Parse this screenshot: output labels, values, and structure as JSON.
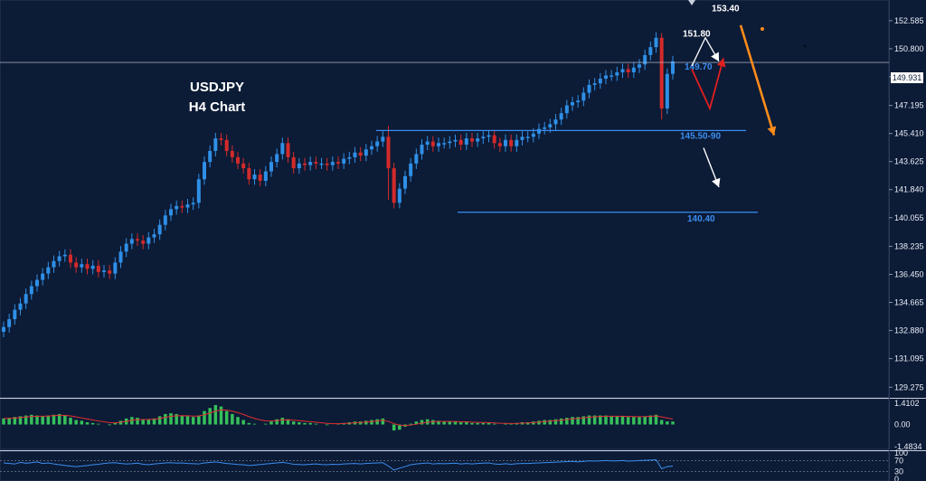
{
  "chart_data": {
    "type": "candlestick",
    "title": "USDJPY",
    "subtitle": "H4 Chart",
    "y_axis": {
      "ticks": [
        "152.585",
        "150.800",
        "149.015",
        "147.195",
        "145.410",
        "143.625",
        "141.840",
        "140.055",
        "138.235",
        "136.450",
        "134.665",
        "132.880",
        "131.095",
        "129.275"
      ],
      "ylim": [
        128.6,
        153.9
      ]
    },
    "current_price": "149.931",
    "price_series": {
      "name": "USDJPY",
      "close": [
        133.1,
        133.6,
        134.2,
        134.6,
        135.2,
        135.7,
        136.1,
        136.5,
        136.9,
        137.3,
        137.6,
        137.7,
        137.2,
        136.9,
        137.1,
        136.8,
        137.0,
        136.6,
        136.7,
        136.5,
        137.2,
        137.9,
        138.4,
        138.7,
        138.6,
        138.4,
        138.8,
        139.0,
        139.6,
        140.2,
        140.6,
        140.8,
        140.7,
        140.9,
        141.0,
        142.5,
        143.6,
        144.3,
        145.1,
        145.0,
        144.3,
        143.9,
        143.5,
        143.2,
        142.5,
        142.8,
        142.4,
        143.0,
        143.6,
        144.1,
        144.8,
        143.9,
        143.2,
        143.5,
        143.4,
        143.6,
        143.5,
        143.5,
        143.4,
        143.6,
        143.5,
        143.8,
        143.9,
        144.2,
        144.0,
        144.4,
        144.6,
        144.9,
        145.2,
        143.2,
        141.0,
        141.9,
        142.7,
        143.5,
        144.1,
        144.7,
        144.9,
        144.6,
        144.8,
        144.8,
        144.9,
        145.0,
        144.7,
        145.1,
        144.9,
        145.1,
        145.2,
        145.3,
        144.8,
        144.6,
        145.0,
        144.6,
        145.0,
        145.2,
        145.2,
        145.4,
        145.7,
        145.8,
        146.0,
        146.3,
        146.7,
        147.2,
        147.4,
        147.5,
        148.0,
        148.5,
        148.6,
        148.9,
        149.1,
        149.1,
        149.3,
        149.5,
        149.3,
        149.6,
        149.8,
        150.4,
        150.9,
        151.5,
        147.0,
        149.2,
        150.0
      ],
      "bearish_wicks": [
        {
          "index": 69,
          "high": 145.9,
          "low": 141.2
        },
        {
          "index": 118,
          "high": 151.8,
          "low": 146.3
        }
      ]
    },
    "levels": [
      {
        "label": "145.50-90",
        "value": 145.6,
        "color": "#3a8ef0"
      },
      {
        "label": "140.40",
        "value": 140.4,
        "color": "#3a8ef0"
      },
      {
        "label": "",
        "value": 149.93,
        "color": "#b9c3d6"
      }
    ],
    "annotations": [
      {
        "label": "153.40",
        "value": 153.4,
        "color": "#ffffff"
      },
      {
        "label": "151.80",
        "value": 151.8,
        "color": "#ffffff"
      },
      {
        "label": "149.70",
        "value": 149.7,
        "color": "#3a8ef0"
      }
    ],
    "arrows": [
      {
        "color": "#ffffff",
        "points": [
          [
            149.7,
            0
          ],
          [
            151.5,
            1
          ],
          [
            150.0,
            2
          ]
        ]
      },
      {
        "color": "#e02020",
        "points": [
          [
            149.5,
            0
          ],
          [
            147.0,
            1
          ],
          [
            150.2,
            2
          ]
        ]
      },
      {
        "color": "#ffffff",
        "points": [
          [
            144.5,
            0
          ],
          [
            142.0,
            1
          ]
        ]
      },
      {
        "color": "#ff8c1a",
        "points": [
          [
            152.3,
            0
          ],
          [
            145.3,
            1
          ]
        ]
      }
    ],
    "macd": {
      "ticks": [
        "1.4102",
        "0.00",
        "-1.4834"
      ],
      "ylim": [
        -1.6,
        1.6
      ],
      "histogram": [
        0.4,
        0.45,
        0.5,
        0.55,
        0.6,
        0.65,
        0.6,
        0.55,
        0.6,
        0.65,
        0.7,
        0.6,
        0.45,
        0.3,
        0.25,
        0.15,
        0.1,
        0.05,
        0.0,
        -0.05,
        0.1,
        0.25,
        0.4,
        0.5,
        0.45,
        0.35,
        0.35,
        0.4,
        0.55,
        0.7,
        0.75,
        0.7,
        0.6,
        0.55,
        0.5,
        0.6,
        0.9,
        1.1,
        1.3,
        1.2,
        0.9,
        0.7,
        0.5,
        0.3,
        0.1,
        0.05,
        0.0,
        0.05,
        0.2,
        0.35,
        0.45,
        0.35,
        0.2,
        0.15,
        0.1,
        0.1,
        0.05,
        0.0,
        -0.05,
        0.0,
        0.05,
        0.1,
        0.15,
        0.2,
        0.2,
        0.25,
        0.3,
        0.35,
        0.4,
        0.0,
        -0.4,
        -0.35,
        -0.15,
        0.05,
        0.2,
        0.3,
        0.35,
        0.3,
        0.25,
        0.2,
        0.2,
        0.2,
        0.15,
        0.15,
        0.1,
        0.1,
        0.1,
        0.1,
        0.05,
        0.0,
        0.05,
        0.05,
        0.1,
        0.15,
        0.15,
        0.2,
        0.25,
        0.3,
        0.3,
        0.35,
        0.4,
        0.45,
        0.5,
        0.5,
        0.55,
        0.6,
        0.6,
        0.6,
        0.6,
        0.55,
        0.55,
        0.55,
        0.5,
        0.5,
        0.5,
        0.55,
        0.6,
        0.65,
        0.3,
        0.2,
        0.2
      ]
    },
    "lower_indicator": {
      "ticks": [
        "100",
        "70",
        "30",
        "0"
      ],
      "ylim": [
        0,
        100
      ],
      "levels": [
        70,
        30
      ],
      "values": [
        62,
        60,
        58,
        64,
        61,
        63,
        66,
        60,
        62,
        58,
        55,
        52,
        50,
        48,
        50,
        52,
        55,
        57,
        60,
        62,
        63,
        60,
        58,
        59,
        61,
        57,
        55,
        58,
        60,
        62,
        63,
        61,
        62,
        60,
        59,
        58,
        62,
        64,
        66,
        63,
        60,
        58,
        56,
        55,
        52,
        54,
        56,
        58,
        60,
        62,
        64,
        61,
        57,
        56,
        55,
        57,
        58,
        56,
        55,
        57,
        56,
        58,
        59,
        60,
        58,
        60,
        61,
        62,
        63,
        50,
        35,
        42,
        48,
        55,
        58,
        60,
        62,
        58,
        60,
        59,
        60,
        61,
        58,
        60,
        58,
        60,
        61,
        62,
        58,
        57,
        59,
        57,
        59,
        60,
        60,
        61,
        62,
        63,
        64,
        65,
        66,
        67,
        68,
        66,
        68,
        70,
        69,
        70,
        71,
        70,
        70,
        71,
        69,
        70,
        71,
        72,
        73,
        74,
        40,
        48,
        50
      ]
    }
  }
}
